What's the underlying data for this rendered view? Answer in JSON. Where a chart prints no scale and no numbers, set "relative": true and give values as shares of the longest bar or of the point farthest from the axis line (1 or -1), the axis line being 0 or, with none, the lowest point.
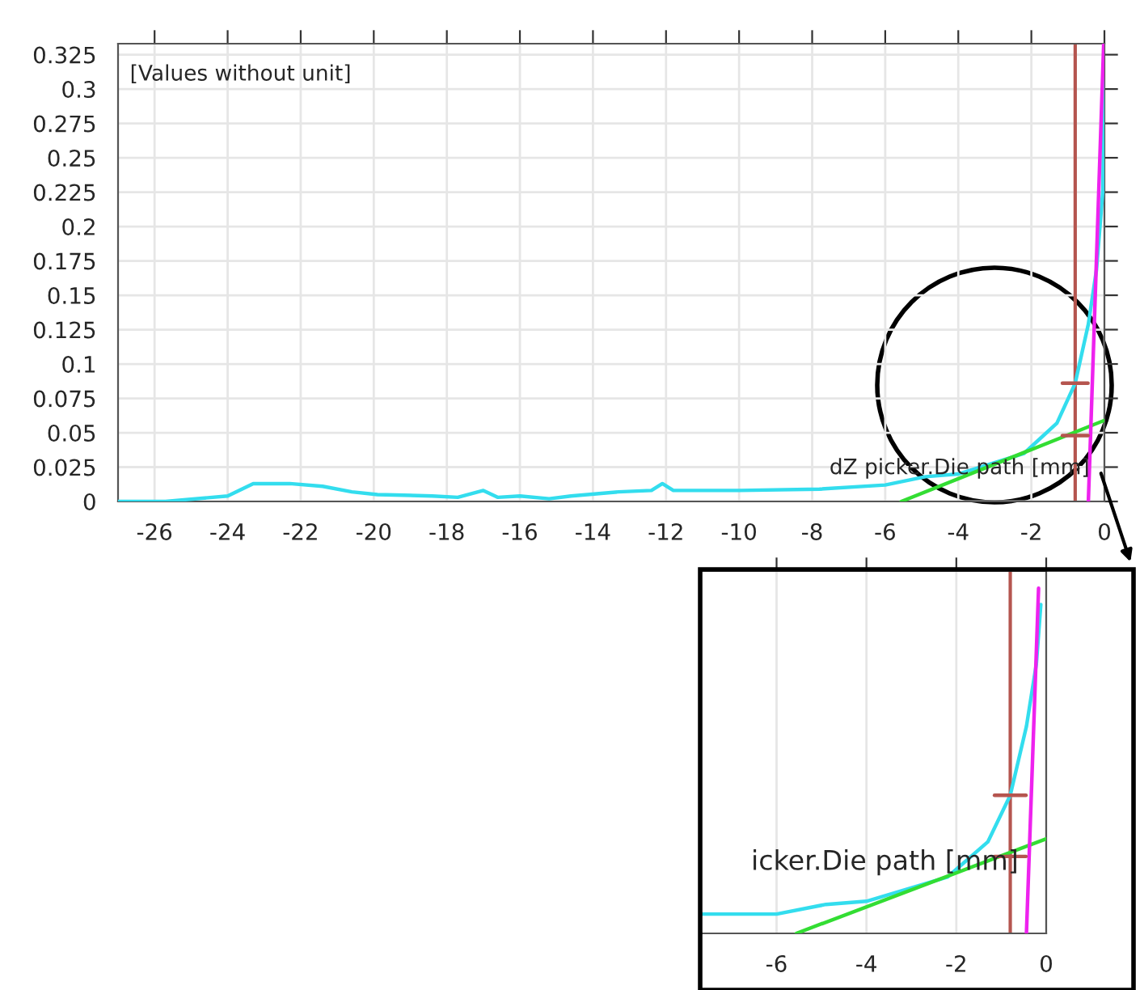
{
  "chart_data": [
    {
      "type": "line",
      "xlabel": "dZ picker.Die path [mm]",
      "ylabel": "[Values without unit]",
      "xlim": [
        -27,
        0
      ],
      "ylim": [
        0,
        0.333
      ],
      "xticks": [
        -26,
        -24,
        -22,
        -20,
        -18,
        -16,
        -14,
        -12,
        -10,
        -8,
        -6,
        -4,
        -2,
        0
      ],
      "yticks": [
        0,
        0.025,
        0.05,
        0.075,
        0.1,
        0.125,
        0.15,
        0.175,
        0.2,
        0.225,
        0.25,
        0.275,
        0.3,
        0.325
      ],
      "grid": true,
      "series": [
        {
          "color": "#33ddee",
          "x": [
            -27,
            -25.7,
            -24,
            -23.3,
            -22.3,
            -21.4,
            -20.6,
            -19.9,
            -18.4,
            -17.7,
            -17.0,
            -16.6,
            -16.0,
            -15.2,
            -14.6,
            -13.3,
            -12.4,
            -12.1,
            -11.8,
            -10.0,
            -7.8,
            -6.0,
            -4.9,
            -4.0,
            -2.2,
            -1.3,
            -0.8,
            -0.44,
            -0.22,
            -0.04,
            -0.01
          ],
          "values": [
            0,
            0,
            0.004,
            0.013,
            0.013,
            0.011,
            0.007,
            0.005,
            0.004,
            0.003,
            0.008,
            0.003,
            0.004,
            0.002,
            0.004,
            0.007,
            0.008,
            0.013,
            0.008,
            0.008,
            0.009,
            0.012,
            0.018,
            0.02,
            0.035,
            0.057,
            0.086,
            0.129,
            0.168,
            0.227,
            0.332
          ]
        },
        {
          "color": "#33dd33",
          "x": [
            -5.56,
            0
          ],
          "values": [
            0,
            0.059
          ]
        },
        {
          "color": "#ee22ee",
          "x": [
            -0.44,
            -0.02
          ],
          "values": [
            0,
            0.333
          ]
        },
        {
          "color": "#b5554f",
          "x": [
            -1.15,
            -0.45
          ],
          "values": [
            0.086,
            0.086
          ]
        },
        {
          "color": "#b5554f",
          "x": [
            -1.15,
            -0.45
          ],
          "values": [
            0.048,
            0.048
          ]
        }
      ],
      "ref_lines": [
        {
          "axis": "x",
          "value": -0.8,
          "color": "#b5554f"
        }
      ]
    },
    {
      "type": "line",
      "xlabel": "icker.Die path [mm]",
      "xlim": [
        -7.7,
        0
      ],
      "xticks": [
        -6,
        -4,
        -2,
        0
      ],
      "relative": true,
      "grid": "x",
      "series": [
        {
          "color": "#33ddee",
          "x": [
            -7.7,
            -6.0,
            -4.9,
            -4.0,
            -2.2,
            -1.3,
            -0.8,
            -0.44,
            -0.22,
            -0.12
          ],
          "values": [
            0.056,
            0.056,
            0.084,
            0.093,
            0.163,
            0.265,
            0.4,
            0.6,
            0.78,
            0.953
          ]
        },
        {
          "color": "#33dd33",
          "x": [
            -5.56,
            0
          ],
          "values": [
            0,
            0.274
          ]
        },
        {
          "color": "#ee22ee",
          "x": [
            -0.44,
            -0.17
          ],
          "values": [
            0,
            1
          ]
        },
        {
          "color": "#b5554f",
          "x": [
            -1.15,
            -0.45
          ],
          "values": [
            0.4,
            0.4
          ]
        },
        {
          "color": "#b5554f",
          "x": [
            -1.15,
            -0.45
          ],
          "values": [
            0.223,
            0.223
          ]
        }
      ],
      "ref_lines": [
        {
          "axis": "x",
          "value": -0.8,
          "color": "#b5554f"
        }
      ]
    }
  ]
}
